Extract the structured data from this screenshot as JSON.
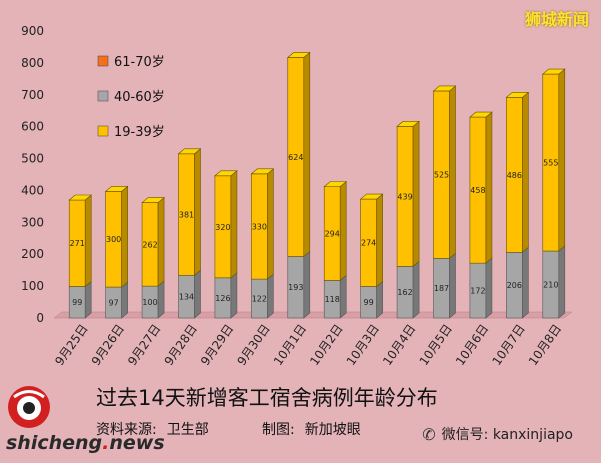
{
  "brand": "狮城新闻",
  "title": "过去14天新增客工宿舍病例年龄分布",
  "source_label": "资料来源:",
  "source_value": "卫生部",
  "maker_label": "制图:",
  "maker_value": "新加坡眼",
  "site": {
    "main": "shicheng",
    "dot": ".",
    "tld": "news"
  },
  "logo_text": "新加坡眼",
  "wechat": {
    "label": "微信号: kanxinjiapo",
    "icon": "wechat-icon"
  },
  "colors": {
    "s1939": "#ffc000",
    "s4060": "#a6a6a6",
    "s6170": "#f4701c",
    "background": "#e3b3b8"
  },
  "chart_data": {
    "type": "bar",
    "stacked": true,
    "categories": [
      "9月25日",
      "9月26日",
      "9月27日",
      "9月28日",
      "9月29日",
      "9月30日",
      "10月1日",
      "10月2日",
      "10月3日",
      "10月4日",
      "10月5日",
      "10月6日",
      "10月7日",
      "10月8日"
    ],
    "series": [
      {
        "name": "19-39岁",
        "color": "#ffc000",
        "values": [
          271,
          300,
          262,
          381,
          320,
          330,
          624,
          294,
          274,
          439,
          525,
          458,
          486,
          555
        ]
      },
      {
        "name": "40-60岁",
        "color": "#a6a6a6",
        "values": [
          99,
          97,
          100,
          134,
          126,
          122,
          193,
          118,
          99,
          162,
          187,
          172,
          206,
          210
        ]
      },
      {
        "name": "61-70岁",
        "color": "#f4701c",
        "values": [
          0,
          0,
          0,
          0,
          0,
          0,
          0,
          0,
          0,
          0,
          0,
          0,
          0,
          0
        ]
      }
    ],
    "ylim": [
      0,
      900
    ],
    "yticks": [
      0,
      100,
      200,
      300,
      400,
      500,
      600,
      700,
      800,
      900
    ],
    "legend": {
      "placement": "top-left",
      "order": [
        "61-70岁",
        "40-60岁",
        "19-39岁"
      ]
    },
    "grid": false
  }
}
